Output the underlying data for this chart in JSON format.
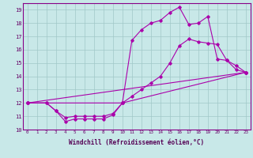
{
  "xlabel": "Windchill (Refroidissement éolien,°C)",
  "xlim": [
    -0.5,
    23.5
  ],
  "ylim": [
    10,
    19.5
  ],
  "xticks": [
    0,
    1,
    2,
    3,
    4,
    5,
    6,
    7,
    8,
    9,
    10,
    11,
    12,
    13,
    14,
    15,
    16,
    17,
    18,
    19,
    20,
    21,
    22,
    23
  ],
  "yticks": [
    10,
    11,
    12,
    13,
    14,
    15,
    16,
    17,
    18,
    19
  ],
  "background_color": "#c8e8e8",
  "grid_color": "#a0c8c8",
  "line_color": "#aa00aa",
  "line_width": 0.8,
  "marker": "D",
  "marker_size": 1.8,
  "lines": [
    {
      "x": [
        0,
        2,
        3,
        4,
        5,
        6,
        7,
        8,
        9,
        10,
        11,
        12,
        13,
        14,
        15,
        16,
        17,
        18,
        19,
        20,
        21,
        22,
        23
      ],
      "y": [
        12,
        12,
        11.4,
        10.6,
        10.8,
        10.8,
        10.8,
        10.8,
        11.1,
        12.0,
        16.7,
        17.5,
        18.0,
        18.2,
        18.8,
        19.2,
        17.9,
        18.0,
        18.5,
        15.3,
        15.2,
        14.5,
        14.3
      ]
    },
    {
      "x": [
        0,
        2,
        3,
        4,
        5,
        6,
        7,
        8,
        9,
        10,
        11,
        12,
        13,
        14,
        15,
        16,
        17,
        18,
        19,
        20,
        21,
        22,
        23
      ],
      "y": [
        12,
        12,
        11.4,
        10.9,
        11.0,
        11.0,
        11.0,
        11.0,
        11.2,
        12.0,
        12.5,
        13.0,
        13.5,
        14.0,
        15.0,
        16.3,
        16.8,
        16.6,
        16.5,
        16.4,
        15.2,
        14.8,
        14.3
      ]
    },
    {
      "x": [
        0,
        23
      ],
      "y": [
        12,
        14.3
      ]
    },
    {
      "x": [
        0,
        10,
        23
      ],
      "y": [
        12,
        12,
        14.3
      ]
    }
  ]
}
